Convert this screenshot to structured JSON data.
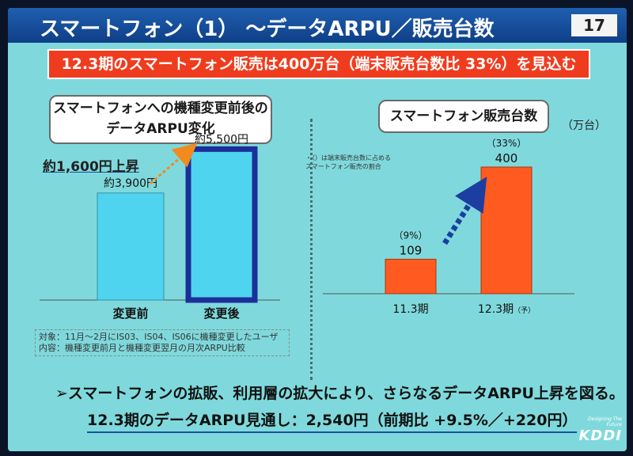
{
  "slide": {
    "title": "スマートフォン（1）  ～データARPU／販売台数",
    "page_number": "17",
    "banner": "12.3期のスマートフォン販売は400万台（端末販売台数比 33%）を見込む",
    "left_box": {
      "line1": "スマートフォンへの機種変更前後の",
      "line2": "データARPU変化"
    },
    "right_box": "スマートフォン販売台数",
    "unit": "（万台）",
    "rise_label": "約1,600円上昇",
    "note": {
      "line1": "・（）は端末販売台数に占める",
      "line2": "スマートフォン販売の割合"
    },
    "condition": {
      "line1": "対象：11月～2月にIS03、IS04、IS06に機種変更したユーザ",
      "line2": "内容：機種変更前月と機種変更翌月の月次ARPU比較"
    },
    "message": "➢スマートフォンの拡販、利用層の拡大により、さらなるデータARPU上昇を図る。",
    "outlook": "12.3期のデータARPU見通し：2,540円（前期比 +9.5%／+220円）",
    "logo": {
      "tagline": "Designing The Future",
      "word": "KDDI"
    }
  },
  "colors": {
    "background": "#7fd9dc",
    "title_bar": "#1f5fb0",
    "banner": "#f03c1e",
    "arpu_bar": "#4fd4ef",
    "arpu_after_border": "#1b2f9a",
    "sales_bar": "#ff5a1f",
    "arrow_orange": "#f28a1e",
    "arrow_blue": "#1b3ea0"
  },
  "chart_data": [
    {
      "type": "bar",
      "title": "スマートフォンへの機種変更前後のデータARPU変化",
      "categories": [
        "変更前",
        "変更後"
      ],
      "values": [
        3900,
        5500
      ],
      "data_labels": [
        "約3,900円",
        "約5,500円"
      ],
      "ylim": [
        0,
        6000
      ],
      "annotation": "約1,600円上昇"
    },
    {
      "type": "bar",
      "title": "スマートフォン販売台数",
      "unit": "（万台）",
      "categories": [
        "11.3期",
        "12.3期"
      ],
      "category_suffix": [
        "",
        "（予）"
      ],
      "values": [
        109,
        400
      ],
      "data_labels": [
        "109",
        "400"
      ],
      "share_labels": [
        "（9%）",
        "（33%）"
      ],
      "ylim": [
        0,
        450
      ]
    }
  ]
}
